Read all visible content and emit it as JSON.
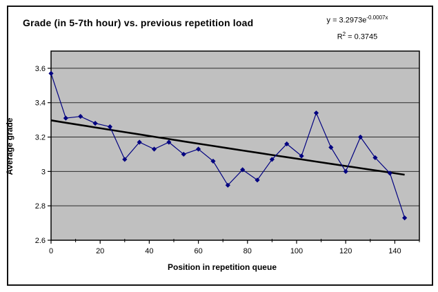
{
  "chart_title": "Grade (in 5-7th hour) vs. previous repetition load",
  "annotation": {
    "equation_prefix": "y = 3.2973e",
    "equation_exponent": "-0.0007x",
    "r2_prefix": "R",
    "r2_superscript": "2",
    "r2_value": " = 0.3745"
  },
  "chart_data": {
    "type": "line",
    "title": "Grade (in 5-7th hour) vs. previous repetition load",
    "xlabel": "Position in repetition queue",
    "ylabel": "Average grade",
    "x": [
      0,
      6,
      12,
      18,
      24,
      30,
      36,
      42,
      48,
      54,
      60,
      66,
      72,
      78,
      84,
      90,
      96,
      102,
      108,
      114,
      120,
      126,
      132,
      138,
      144
    ],
    "y": [
      3.57,
      3.31,
      3.32,
      3.28,
      3.26,
      3.07,
      3.17,
      3.13,
      3.17,
      3.1,
      3.13,
      3.06,
      2.92,
      3.01,
      2.95,
      3.07,
      3.16,
      3.09,
      3.34,
      3.14,
      3.0,
      3.2,
      3.08,
      2.99,
      2.73
    ],
    "xlim": [
      0,
      150
    ],
    "ylim": [
      2.6,
      3.7
    ],
    "x_ticks": {
      "major_values": [
        0,
        20,
        40,
        60,
        80,
        100,
        120,
        140
      ],
      "major_labels": [
        "0",
        "20",
        "40",
        "60",
        "80",
        "100",
        "120",
        "140"
      ],
      "minor_step": 10
    },
    "y_ticks": {
      "values": [
        2.6,
        2.8,
        3.0,
        3.2,
        3.4,
        3.6
      ],
      "labels": [
        "2.6",
        "2.8",
        "3",
        "3.2",
        "3.4",
        "3.6"
      ]
    },
    "grid": "horizontal-major-only",
    "legend": "none",
    "trendline": {
      "model": "exponential",
      "a": 3.2973,
      "b": -0.0007,
      "r_squared": 0.3745,
      "x_range": [
        0,
        144
      ]
    },
    "colors": {
      "series": "#000080",
      "trendline": "#000000",
      "plot_background": "#c0c0c0",
      "gridline": "#2a2a2a",
      "axis": "#000000",
      "chart_background": "#ffffff",
      "border": "#111111"
    }
  }
}
